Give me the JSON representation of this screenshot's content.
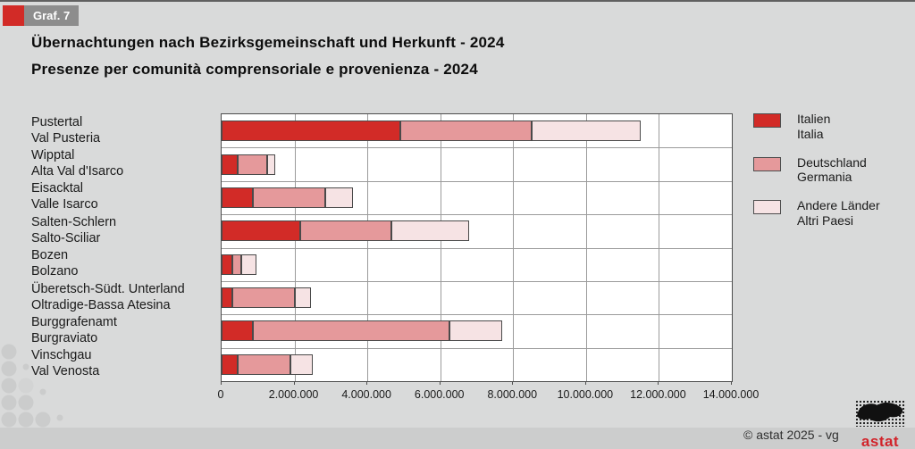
{
  "header": {
    "tag": "Graf. 7",
    "title_de": "Übernachtungen nach Bezirksgemeinschaft und Herkunft - 2024",
    "title_it": "Presenze per comunità comprensoriale e provenienza - 2024"
  },
  "colors": {
    "italy": "#d22b27",
    "germany": "#e5999b",
    "other": "#f6e3e4",
    "accent_red": "#d22b27",
    "tag_gray": "#8d8d8d",
    "grid": "#9b9b9b",
    "logo_red": "#d2232a"
  },
  "chart_data": {
    "type": "bar",
    "orientation": "horizontal",
    "stacked": true,
    "grid": true,
    "xlim": [
      0,
      14000000
    ],
    "x_ticks": [
      0,
      2000000,
      4000000,
      6000000,
      8000000,
      10000000,
      12000000,
      14000000
    ],
    "x_tick_labels": [
      "0",
      "2.000.000",
      "4.000.000",
      "6.000.000",
      "8.000.000",
      "10.000.000",
      "12.000.000",
      "14.000.000"
    ],
    "categories": [
      {
        "de": "Pustertal",
        "it": "Val Pusteria"
      },
      {
        "de": "Wipptal",
        "it": "Alta Val d'Isarco"
      },
      {
        "de": "Eisacktal",
        "it": "Valle Isarco"
      },
      {
        "de": "Salten-Schlern",
        "it": "Salto-Sciliar"
      },
      {
        "de": "Bozen",
        "it": "Bolzano"
      },
      {
        "de": "Überetsch-Südt. Unterland",
        "it": "Oltradige-Bassa Atesina"
      },
      {
        "de": "Burggrafenamt",
        "it": "Burgraviato"
      },
      {
        "de": "Vinschgau",
        "it": "Val Venosta"
      }
    ],
    "series": [
      {
        "name_de": "Italien",
        "name_it": "Italia",
        "color_key": "italy",
        "values": [
          4900000,
          450000,
          850000,
          2150000,
          300000,
          300000,
          850000,
          450000
        ]
      },
      {
        "name_de": "Deutschland",
        "name_it": "Germania",
        "color_key": "germany",
        "values": [
          3600000,
          800000,
          2000000,
          2500000,
          250000,
          1700000,
          5400000,
          1450000
        ]
      },
      {
        "name_de": "Andere Länder",
        "name_it": "Altri Paesi",
        "color_key": "other",
        "values": [
          3000000,
          230000,
          750000,
          2150000,
          400000,
          450000,
          1450000,
          600000
        ]
      }
    ],
    "legend_position": "right"
  },
  "footer": {
    "copyright": "© astat 2025 - vg",
    "logo_text": "astat"
  }
}
